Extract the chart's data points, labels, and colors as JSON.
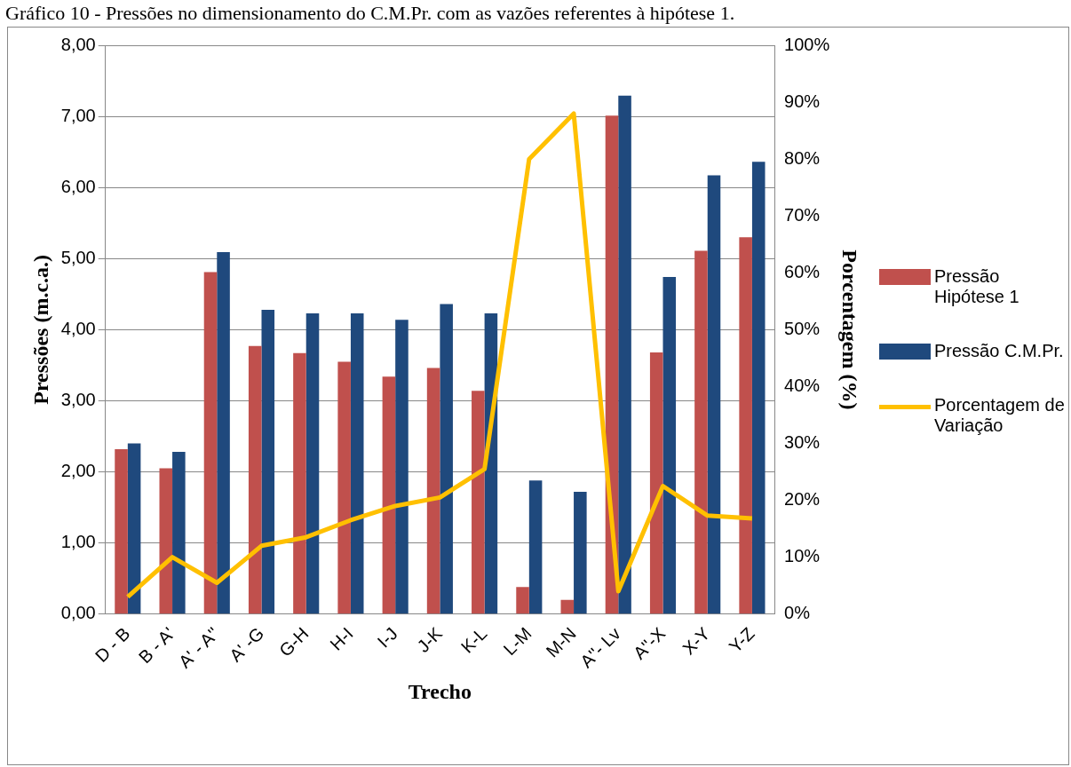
{
  "chart_data": {
    "type": "bar",
    "title": "Gráfico 10 - Pressões no dimensionamento do C.M.Pr. com as vazões referentes à hipótese 1.",
    "xlabel": "Trecho",
    "ylabel": "Pressões (m.c.a.)",
    "y2label": "Porcentagem (%)",
    "categories": [
      "D - B",
      "B - A'",
      "A' - A''",
      "A' -G",
      "G-H",
      "H-I",
      "I-J",
      "J-K",
      "K-L",
      "L-M",
      "M-N",
      "A''- Lv",
      "A''-X",
      "X-Y",
      "Y-Z"
    ],
    "series": [
      {
        "name": "Pressão Hipótese 1",
        "color": "#c0504d",
        "values": [
          2.32,
          2.05,
          4.81,
          3.77,
          3.67,
          3.55,
          3.34,
          3.46,
          3.14,
          0.38,
          0.2,
          7.01,
          3.68,
          5.11,
          5.3
        ]
      },
      {
        "name": "Pressão C.M.Pr.",
        "color": "#1f497d",
        "values": [
          2.4,
          2.28,
          5.09,
          4.28,
          4.23,
          4.23,
          4.14,
          4.36,
          4.23,
          1.88,
          1.72,
          7.29,
          4.74,
          6.17,
          6.36
        ]
      },
      {
        "name": "Porcentagem de Variação",
        "type": "line",
        "axis": "y2",
        "color": "#ffc000",
        "values": [
          3,
          10,
          5.5,
          12,
          13.5,
          16.5,
          19,
          20.5,
          25.5,
          80,
          88,
          4,
          22.5,
          17.3,
          16.8
        ]
      }
    ],
    "ylim": [
      0,
      8
    ],
    "yticks": [
      {
        "value": 0,
        "label": "0,00"
      },
      {
        "value": 1,
        "label": "1,00"
      },
      {
        "value": 2,
        "label": "2,00"
      },
      {
        "value": 3,
        "label": "3,00"
      },
      {
        "value": 4,
        "label": "4,00"
      },
      {
        "value": 5,
        "label": "5,00"
      },
      {
        "value": 6,
        "label": "6,00"
      },
      {
        "value": 7,
        "label": "7,00"
      },
      {
        "value": 8,
        "label": "8,00"
      }
    ],
    "y2lim": [
      0,
      100
    ],
    "y2ticks": [
      {
        "value": 0,
        "label": "0%"
      },
      {
        "value": 10,
        "label": "10%"
      },
      {
        "value": 20,
        "label": "20%"
      },
      {
        "value": 30,
        "label": "30%"
      },
      {
        "value": 40,
        "label": "40%"
      },
      {
        "value": 50,
        "label": "50%"
      },
      {
        "value": 60,
        "label": "60%"
      },
      {
        "value": 70,
        "label": "70%"
      },
      {
        "value": 80,
        "label": "80%"
      },
      {
        "value": 90,
        "label": "90%"
      },
      {
        "value": 100,
        "label": "100%"
      }
    ],
    "grid": "y",
    "legend": "right",
    "marker": "none"
  }
}
